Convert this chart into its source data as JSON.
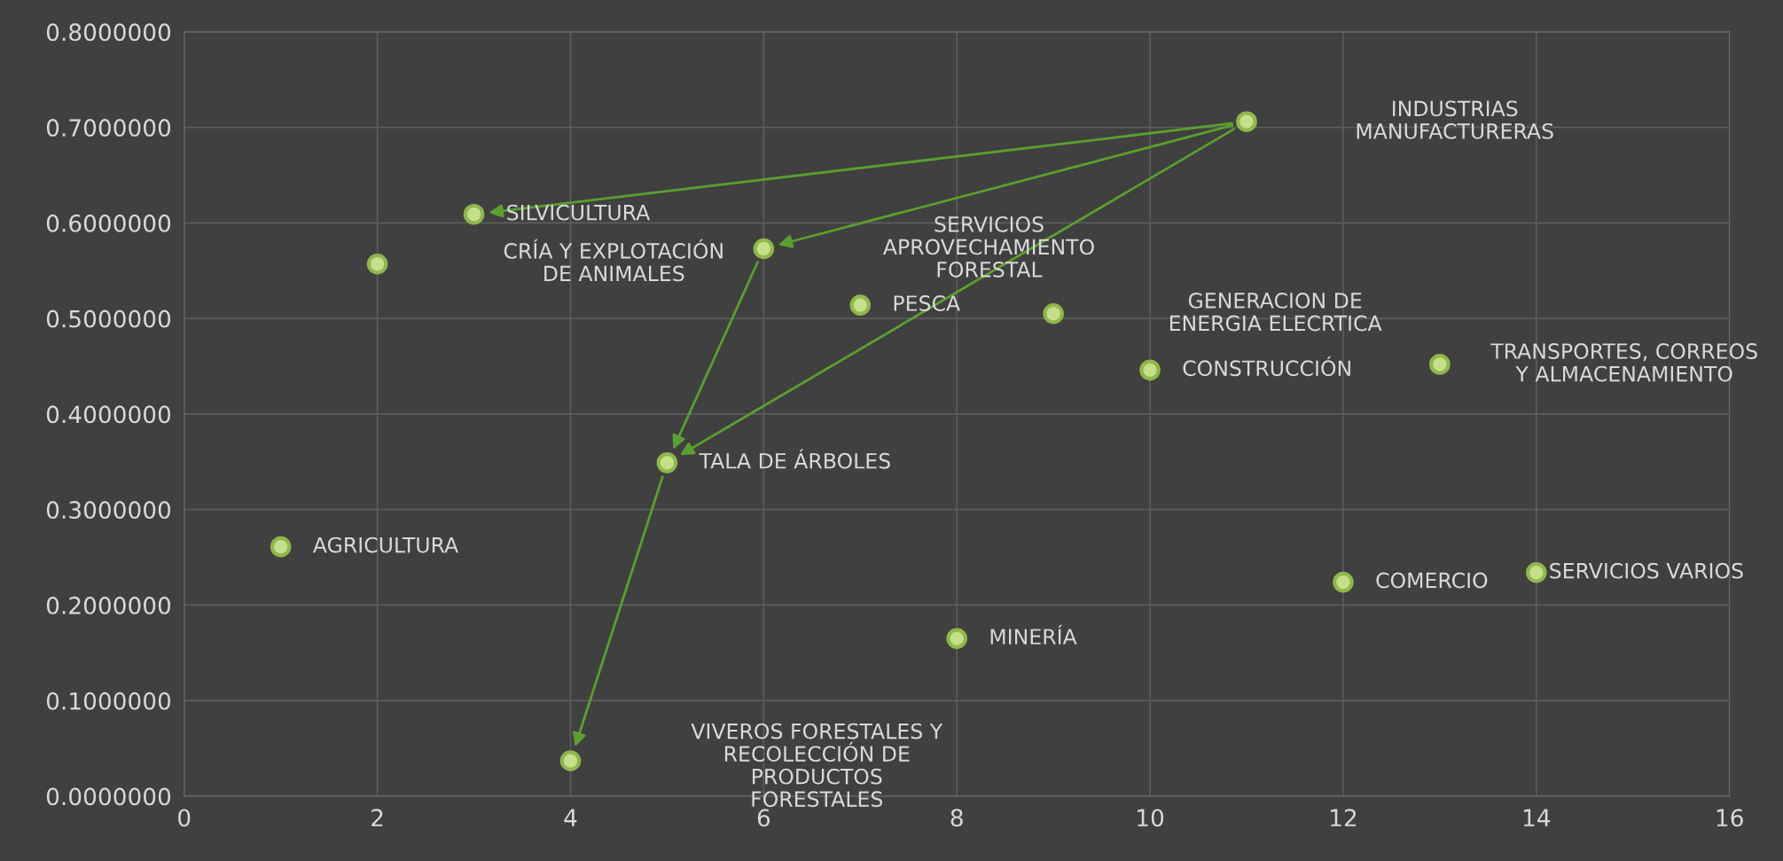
{
  "chart_data": {
    "type": "scatter",
    "x": [
      1,
      2,
      3,
      4,
      5,
      6,
      7,
      8,
      9,
      10,
      11,
      12,
      13,
      14
    ],
    "series": [
      {
        "color": "#c5e08a",
        "values": [
          0.261,
          0.557,
          0.609,
          0.037,
          0.349,
          0.573,
          0.514,
          0.165,
          0.505,
          0.446,
          0.706,
          0.224,
          0.452,
          0.234
        ]
      }
    ],
    "xlim": [
      0,
      16
    ],
    "xticks": [
      0,
      2,
      4,
      6,
      8,
      10,
      12,
      14,
      16
    ],
    "ylim": [
      0,
      0.8
    ],
    "yticks": [
      {
        "value": 0,
        "label": "0.0000000"
      },
      {
        "value": 0.1,
        "label": "0.1000000"
      },
      {
        "value": 0.2,
        "label": "0.2000000"
      },
      {
        "value": 0.3,
        "label": "0.3000000"
      },
      {
        "value": 0.4,
        "label": "0.4000000"
      },
      {
        "value": 0.5,
        "label": "0.5000000"
      },
      {
        "value": 0.6,
        "label": "0.6000000"
      },
      {
        "value": 0.7,
        "label": "0.7000000"
      },
      {
        "value": 0.8,
        "label": "0.8000000"
      }
    ],
    "grid": true,
    "marker": "circle",
    "annotations": [
      {
        "text": "AGRICULTURA",
        "x": 1,
        "y": 0.261
      },
      "CRÍA Y EXPLOTACIÓN\nDE ANIMALES",
      {
        "text": "SILVICULTURA",
        "x": 3,
        "y": 0.609
      },
      "VIVEROS FORESTALES Y\nRECOLECCIÓN DE\nPRODUCTOS\nFORESTALES",
      {
        "text": "TALA DE ÁRBOLES",
        "x": 5,
        "y": 0.349
      },
      "SERVICIOS\nAPROVECHAMIENTO\nFORESTAL",
      {
        "text": "PESCA",
        "x": 7,
        "y": 0.514
      },
      {
        "text": "MINERÍA",
        "x": 8,
        "y": 0.165
      },
      "GENERACION DE\nENERGIA ELECRTICA",
      {
        "text": "CONSTRUCCIÓN",
        "x": 10,
        "y": 0.446
      },
      "INDUSTRIAS\nMANUFACTURERAS",
      {
        "text": "COMERCIO",
        "x": 12,
        "y": 0.224
      },
      "TRANSPORTES, CORREOS\nY ALMACENAMIENTO",
      {
        "text": "SERVICIOS VARIOS",
        "x": 14,
        "y": 0.234
      }
    ]
  }
}
